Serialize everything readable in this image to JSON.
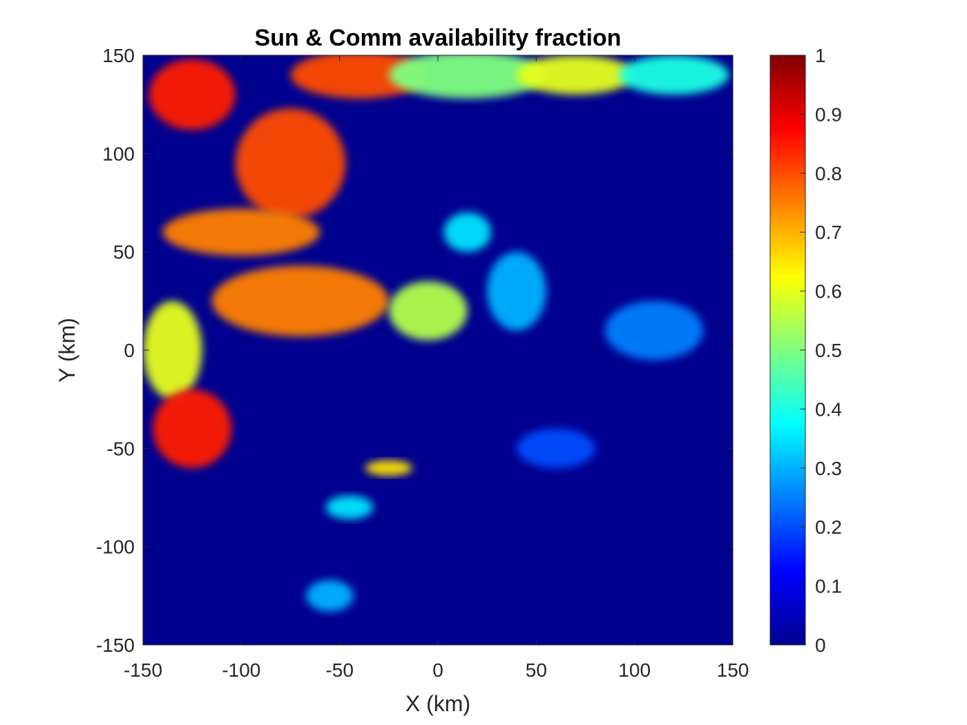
{
  "chart_data": {
    "type": "heatmap",
    "title": "Sun & Comm availability fraction",
    "xlabel": "X (km)",
    "ylabel": "Y (km)",
    "xlim": [
      -150,
      150
    ],
    "ylim": [
      -150,
      150
    ],
    "x_ticks": [
      "-150",
      "-100",
      "-50",
      "0",
      "50",
      "100",
      "150"
    ],
    "y_ticks": [
      "150",
      "100",
      "50",
      "0",
      "-50",
      "-100",
      "-150"
    ],
    "colorbar": {
      "colormap": "jet",
      "range": [
        0,
        1
      ],
      "ticks": [
        "1",
        "0.9",
        "0.8",
        "0.7",
        "0.6",
        "0.5",
        "0.4",
        "0.3",
        "0.2",
        "0.1",
        "0"
      ]
    },
    "no_data_color": "#ffffff",
    "background_value": 0,
    "regions": [
      {
        "x": -125,
        "y": 130,
        "rx": 22,
        "ry": 18,
        "value": 0.85
      },
      {
        "x": -75,
        "y": 95,
        "rx": 28,
        "ry": 28,
        "value": 0.8
      },
      {
        "x": -100,
        "y": 60,
        "rx": 40,
        "ry": 12,
        "value": 0.75
      },
      {
        "x": -40,
        "y": 140,
        "rx": 35,
        "ry": 12,
        "value": 0.8
      },
      {
        "x": 15,
        "y": 140,
        "rx": 40,
        "ry": 12,
        "value": 0.5
      },
      {
        "x": 70,
        "y": 140,
        "rx": 30,
        "ry": 10,
        "value": 0.6
      },
      {
        "x": 120,
        "y": 140,
        "rx": 28,
        "ry": 10,
        "value": 0.4
      },
      {
        "x": -70,
        "y": 25,
        "rx": 45,
        "ry": 18,
        "value": 0.75
      },
      {
        "x": -135,
        "y": 0,
        "rx": 15,
        "ry": 25,
        "value": 0.6
      },
      {
        "x": -125,
        "y": -40,
        "rx": 20,
        "ry": 20,
        "value": 0.85
      },
      {
        "x": -5,
        "y": 20,
        "rx": 20,
        "ry": 15,
        "value": 0.55
      },
      {
        "x": 15,
        "y": 60,
        "rx": 12,
        "ry": 10,
        "value": 0.35
      },
      {
        "x": 40,
        "y": 30,
        "rx": 15,
        "ry": 20,
        "value": 0.3
      },
      {
        "x": -25,
        "y": -60,
        "rx": 12,
        "ry": 4,
        "value": 0.65
      },
      {
        "x": -45,
        "y": -80,
        "rx": 12,
        "ry": 6,
        "value": 0.35
      },
      {
        "x": -55,
        "y": -125,
        "rx": 12,
        "ry": 8,
        "value": 0.3
      },
      {
        "x": 110,
        "y": 10,
        "rx": 25,
        "ry": 15,
        "value": 0.25
      },
      {
        "x": 60,
        "y": -50,
        "rx": 20,
        "ry": 10,
        "value": 0.2
      }
    ]
  }
}
